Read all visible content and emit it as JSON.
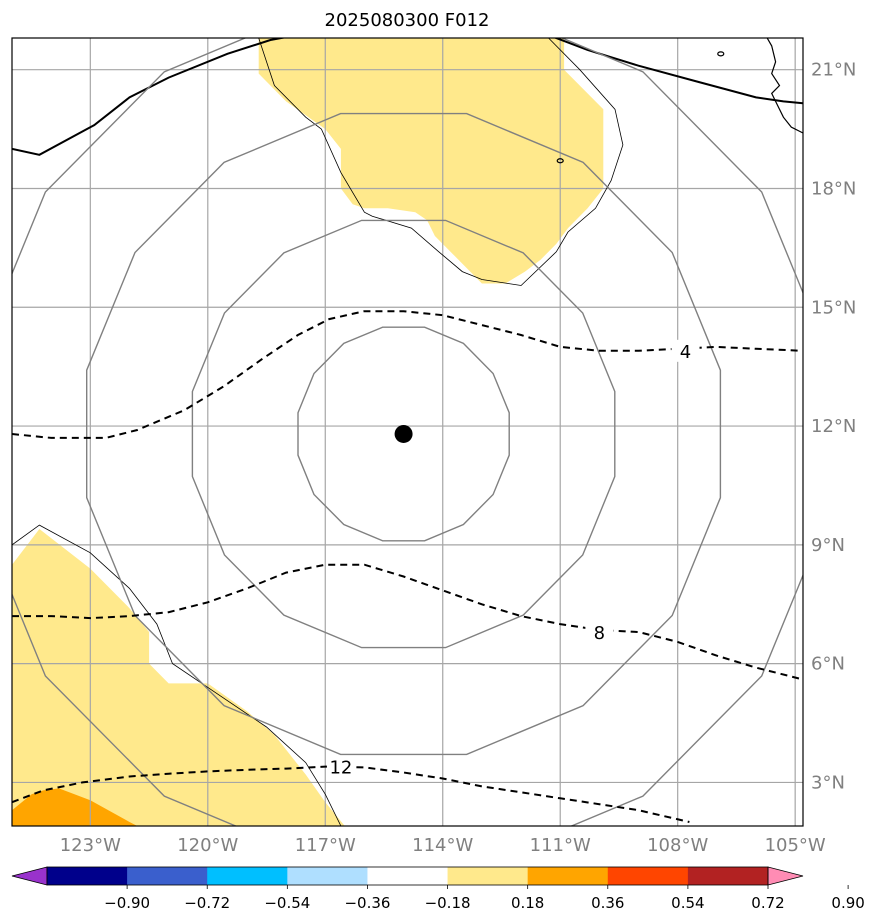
{
  "chart_data": {
    "type": "map",
    "title": "2025080300 F012",
    "projection": "PlateCarree",
    "extent": {
      "lon": [
        -125.0,
        -104.8
      ],
      "lat": [
        1.9,
        21.8
      ]
    },
    "gridlines": true,
    "center_marker": {
      "lon": -115.0,
      "lat": 11.8
    },
    "x_ticks": [
      {
        "value": -123,
        "label": "123°W"
      },
      {
        "value": -120,
        "label": "120°W"
      },
      {
        "value": -117,
        "label": "117°W"
      },
      {
        "value": -114,
        "label": "114°W"
      },
      {
        "value": -111,
        "label": "111°W"
      },
      {
        "value": -108,
        "label": "108°W"
      },
      {
        "value": -105,
        "label": "105°W"
      }
    ],
    "y_ticks": [
      {
        "value": 3,
        "label": "3°N"
      },
      {
        "value": 6,
        "label": "6°N"
      },
      {
        "value": 9,
        "label": "9°N"
      },
      {
        "value": 12,
        "label": "12°N"
      },
      {
        "value": 15,
        "label": "15°N"
      },
      {
        "value": 18,
        "label": "18°N"
      },
      {
        "value": 21,
        "label": "21°N"
      }
    ],
    "range_rings_deg": [
      2.75,
      5.5,
      8.25,
      11.0
    ],
    "dashed_contours": [
      {
        "label": "4",
        "label_at": [
          -107.8,
          13.9
        ],
        "points": [
          [
            -125,
            11.8
          ],
          [
            -124,
            11.7
          ],
          [
            -122.6,
            11.7
          ],
          [
            -121.8,
            11.9
          ],
          [
            -120.6,
            12.4
          ],
          [
            -119.6,
            13.0
          ],
          [
            -118.6,
            13.7
          ],
          [
            -117.7,
            14.3
          ],
          [
            -116.9,
            14.7
          ],
          [
            -116.0,
            14.9
          ],
          [
            -115.0,
            14.9
          ],
          [
            -114.0,
            14.8
          ],
          [
            -113.0,
            14.55
          ],
          [
            -112.0,
            14.3
          ],
          [
            -111.0,
            14.0
          ],
          [
            -110.0,
            13.9
          ],
          [
            -109.0,
            13.9
          ],
          [
            -108.0,
            13.95
          ],
          [
            -107.0,
            14.0
          ],
          [
            -106.0,
            13.95
          ],
          [
            -104.8,
            13.9
          ]
        ]
      },
      {
        "label": "8",
        "label_at": [
          -110.0,
          6.8
        ],
        "points": [
          [
            -125,
            7.2
          ],
          [
            -124,
            7.2
          ],
          [
            -123,
            7.15
          ],
          [
            -122,
            7.2
          ],
          [
            -121,
            7.3
          ],
          [
            -120,
            7.55
          ],
          [
            -119,
            7.9
          ],
          [
            -118,
            8.3
          ],
          [
            -117,
            8.5
          ],
          [
            -116,
            8.5
          ],
          [
            -115,
            8.2
          ],
          [
            -114,
            7.85
          ],
          [
            -113,
            7.5
          ],
          [
            -112,
            7.2
          ],
          [
            -111,
            7.0
          ],
          [
            -110,
            6.85
          ],
          [
            -109,
            6.8
          ],
          [
            -108,
            6.55
          ],
          [
            -107,
            6.2
          ],
          [
            -106,
            5.9
          ],
          [
            -104.8,
            5.6
          ]
        ]
      },
      {
        "label": "12",
        "label_at": [
          -116.6,
          3.4
        ],
        "points": [
          [
            -125,
            2.5
          ],
          [
            -124.2,
            2.8
          ],
          [
            -123.2,
            3.0
          ],
          [
            -122,
            3.15
          ],
          [
            -121,
            3.22
          ],
          [
            -120,
            3.28
          ],
          [
            -119,
            3.32
          ],
          [
            -118,
            3.35
          ],
          [
            -117,
            3.4
          ],
          [
            -116,
            3.38
          ],
          [
            -115,
            3.25
          ],
          [
            -114,
            3.1
          ],
          [
            -113,
            2.9
          ],
          [
            -112,
            2.75
          ],
          [
            -111,
            2.6
          ],
          [
            -110,
            2.45
          ],
          [
            -109,
            2.3
          ],
          [
            -107.7,
            2.0
          ]
        ]
      }
    ],
    "shading": [
      {
        "level": "0.18-0.36",
        "color": "#ffe98c",
        "points": [
          [
            -118.7,
            21.8
          ],
          [
            -110.9,
            21.8
          ],
          [
            -110.9,
            21.0
          ],
          [
            -109.9,
            20.0
          ],
          [
            -109.9,
            18.0
          ],
          [
            -110.3,
            17.5
          ],
          [
            -110.8,
            17.0
          ],
          [
            -111.1,
            16.6
          ],
          [
            -111.5,
            16.2
          ],
          [
            -111.9,
            15.9
          ],
          [
            -112.4,
            15.6
          ],
          [
            -113.0,
            15.6
          ],
          [
            -113.7,
            16.3
          ],
          [
            -114.2,
            16.8
          ],
          [
            -114.4,
            17.2
          ],
          [
            -114.7,
            17.4
          ],
          [
            -115.4,
            17.5
          ],
          [
            -116.0,
            17.5
          ],
          [
            -116.3,
            17.6
          ],
          [
            -116.6,
            18.0
          ],
          [
            -116.6,
            19.0
          ],
          [
            -117.0,
            19.5
          ],
          [
            -118.0,
            20.2
          ],
          [
            -118.7,
            20.9
          ]
        ]
      },
      {
        "level": "0.18-0.36",
        "color": "#ffe98c",
        "points": [
          [
            -125,
            8.5
          ],
          [
            -124.3,
            9.4
          ],
          [
            -123.0,
            8.4
          ],
          [
            -122.0,
            7.4
          ],
          [
            -121.5,
            6.8
          ],
          [
            -121.5,
            6.0
          ],
          [
            -121.0,
            5.5
          ],
          [
            -120.0,
            5.5
          ],
          [
            -119.0,
            4.8
          ],
          [
            -118.3,
            4.2
          ],
          [
            -117.5,
            3.2
          ],
          [
            -117.0,
            2.5
          ],
          [
            -116.5,
            1.9
          ],
          [
            -125,
            1.9
          ]
        ]
      },
      {
        "level": "0.36-0.54",
        "color": "#ffa500",
        "points": [
          [
            -125,
            2.3
          ],
          [
            -124.5,
            2.7
          ],
          [
            -124.2,
            2.8
          ],
          [
            -123.8,
            2.85
          ],
          [
            -123.0,
            2.55
          ],
          [
            -122.0,
            2.0
          ],
          [
            -121.8,
            1.9
          ],
          [
            -125,
            1.9
          ]
        ]
      }
    ],
    "coastlines_thin": [
      [
        [
          -118.7,
          21.8
        ],
        [
          -118.3,
          20.6
        ],
        [
          -117.5,
          19.8
        ],
        [
          -117.1,
          19.5
        ],
        [
          -116.6,
          18.4
        ],
        [
          -116.0,
          17.4
        ],
        [
          -115.8,
          17.3
        ],
        [
          -114.8,
          17.0
        ],
        [
          -114.1,
          16.4
        ],
        [
          -113.5,
          15.9
        ],
        [
          -113.0,
          15.7
        ],
        [
          -112.0,
          15.55
        ],
        [
          -111.1,
          16.4
        ],
        [
          -110.8,
          16.9
        ],
        [
          -110.1,
          17.5
        ],
        [
          -109.7,
          18.2
        ],
        [
          -109.4,
          19.1
        ],
        [
          -109.6,
          20.0
        ],
        [
          -110.5,
          21.0
        ],
        [
          -111.3,
          21.8
        ]
      ],
      [
        [
          -125,
          9.0
        ],
        [
          -124.3,
          9.5
        ],
        [
          -123.0,
          8.8
        ],
        [
          -122.0,
          7.9
        ],
        [
          -121.3,
          7.0
        ],
        [
          -120.9,
          6.0
        ],
        [
          -119.7,
          5.2
        ],
        [
          -118.5,
          4.4
        ],
        [
          -117.5,
          3.5
        ],
        [
          -117.0,
          2.7
        ],
        [
          -116.6,
          1.9
        ]
      ]
    ],
    "coastlines_thick": [
      [
        [
          -125,
          19.0
        ],
        [
          -124.3,
          18.85
        ],
        [
          -122.9,
          19.6
        ],
        [
          -122.0,
          20.3
        ],
        [
          -121.0,
          20.8
        ],
        [
          -119.5,
          21.4
        ],
        [
          -118.4,
          21.75
        ],
        [
          -117.3,
          21.95
        ]
      ],
      [
        [
          -111.5,
          21.95
        ],
        [
          -110.3,
          21.5
        ],
        [
          -109.0,
          21.1
        ],
        [
          -107.5,
          20.7
        ],
        [
          -106.0,
          20.3
        ],
        [
          -105.3,
          20.2
        ],
        [
          -104.8,
          20.15
        ]
      ]
    ],
    "coastlines_land": [
      [
        [
          -105.8,
          21.95
        ],
        [
          -105.6,
          21.6
        ],
        [
          -105.5,
          21.2
        ],
        [
          -105.6,
          20.9
        ],
        [
          -105.4,
          20.6
        ],
        [
          -105.6,
          20.4
        ],
        [
          -105.5,
          20.2
        ],
        [
          -105.3,
          19.8
        ],
        [
          -105.1,
          19.55
        ],
        [
          -104.8,
          19.4
        ]
      ]
    ],
    "islands": [
      {
        "lon": -111.0,
        "lat": 18.7
      },
      {
        "lon": -106.9,
        "lat": 21.4
      }
    ],
    "colorbar": {
      "colors": [
        "#9932cc",
        "#00008b",
        "#3a5fcd",
        "#00bfff",
        "#afdfff",
        "#ffffff",
        "#ffe98c",
        "#ffa500",
        "#ff4500",
        "#b22222",
        "#ff8cb4"
      ],
      "ticks": [
        "−0.90",
        "−0.72",
        "−0.54",
        "−0.36",
        "−0.18",
        "0.18",
        "0.36",
        "0.54",
        "0.72",
        "0.90"
      ],
      "extend": "both"
    }
  }
}
